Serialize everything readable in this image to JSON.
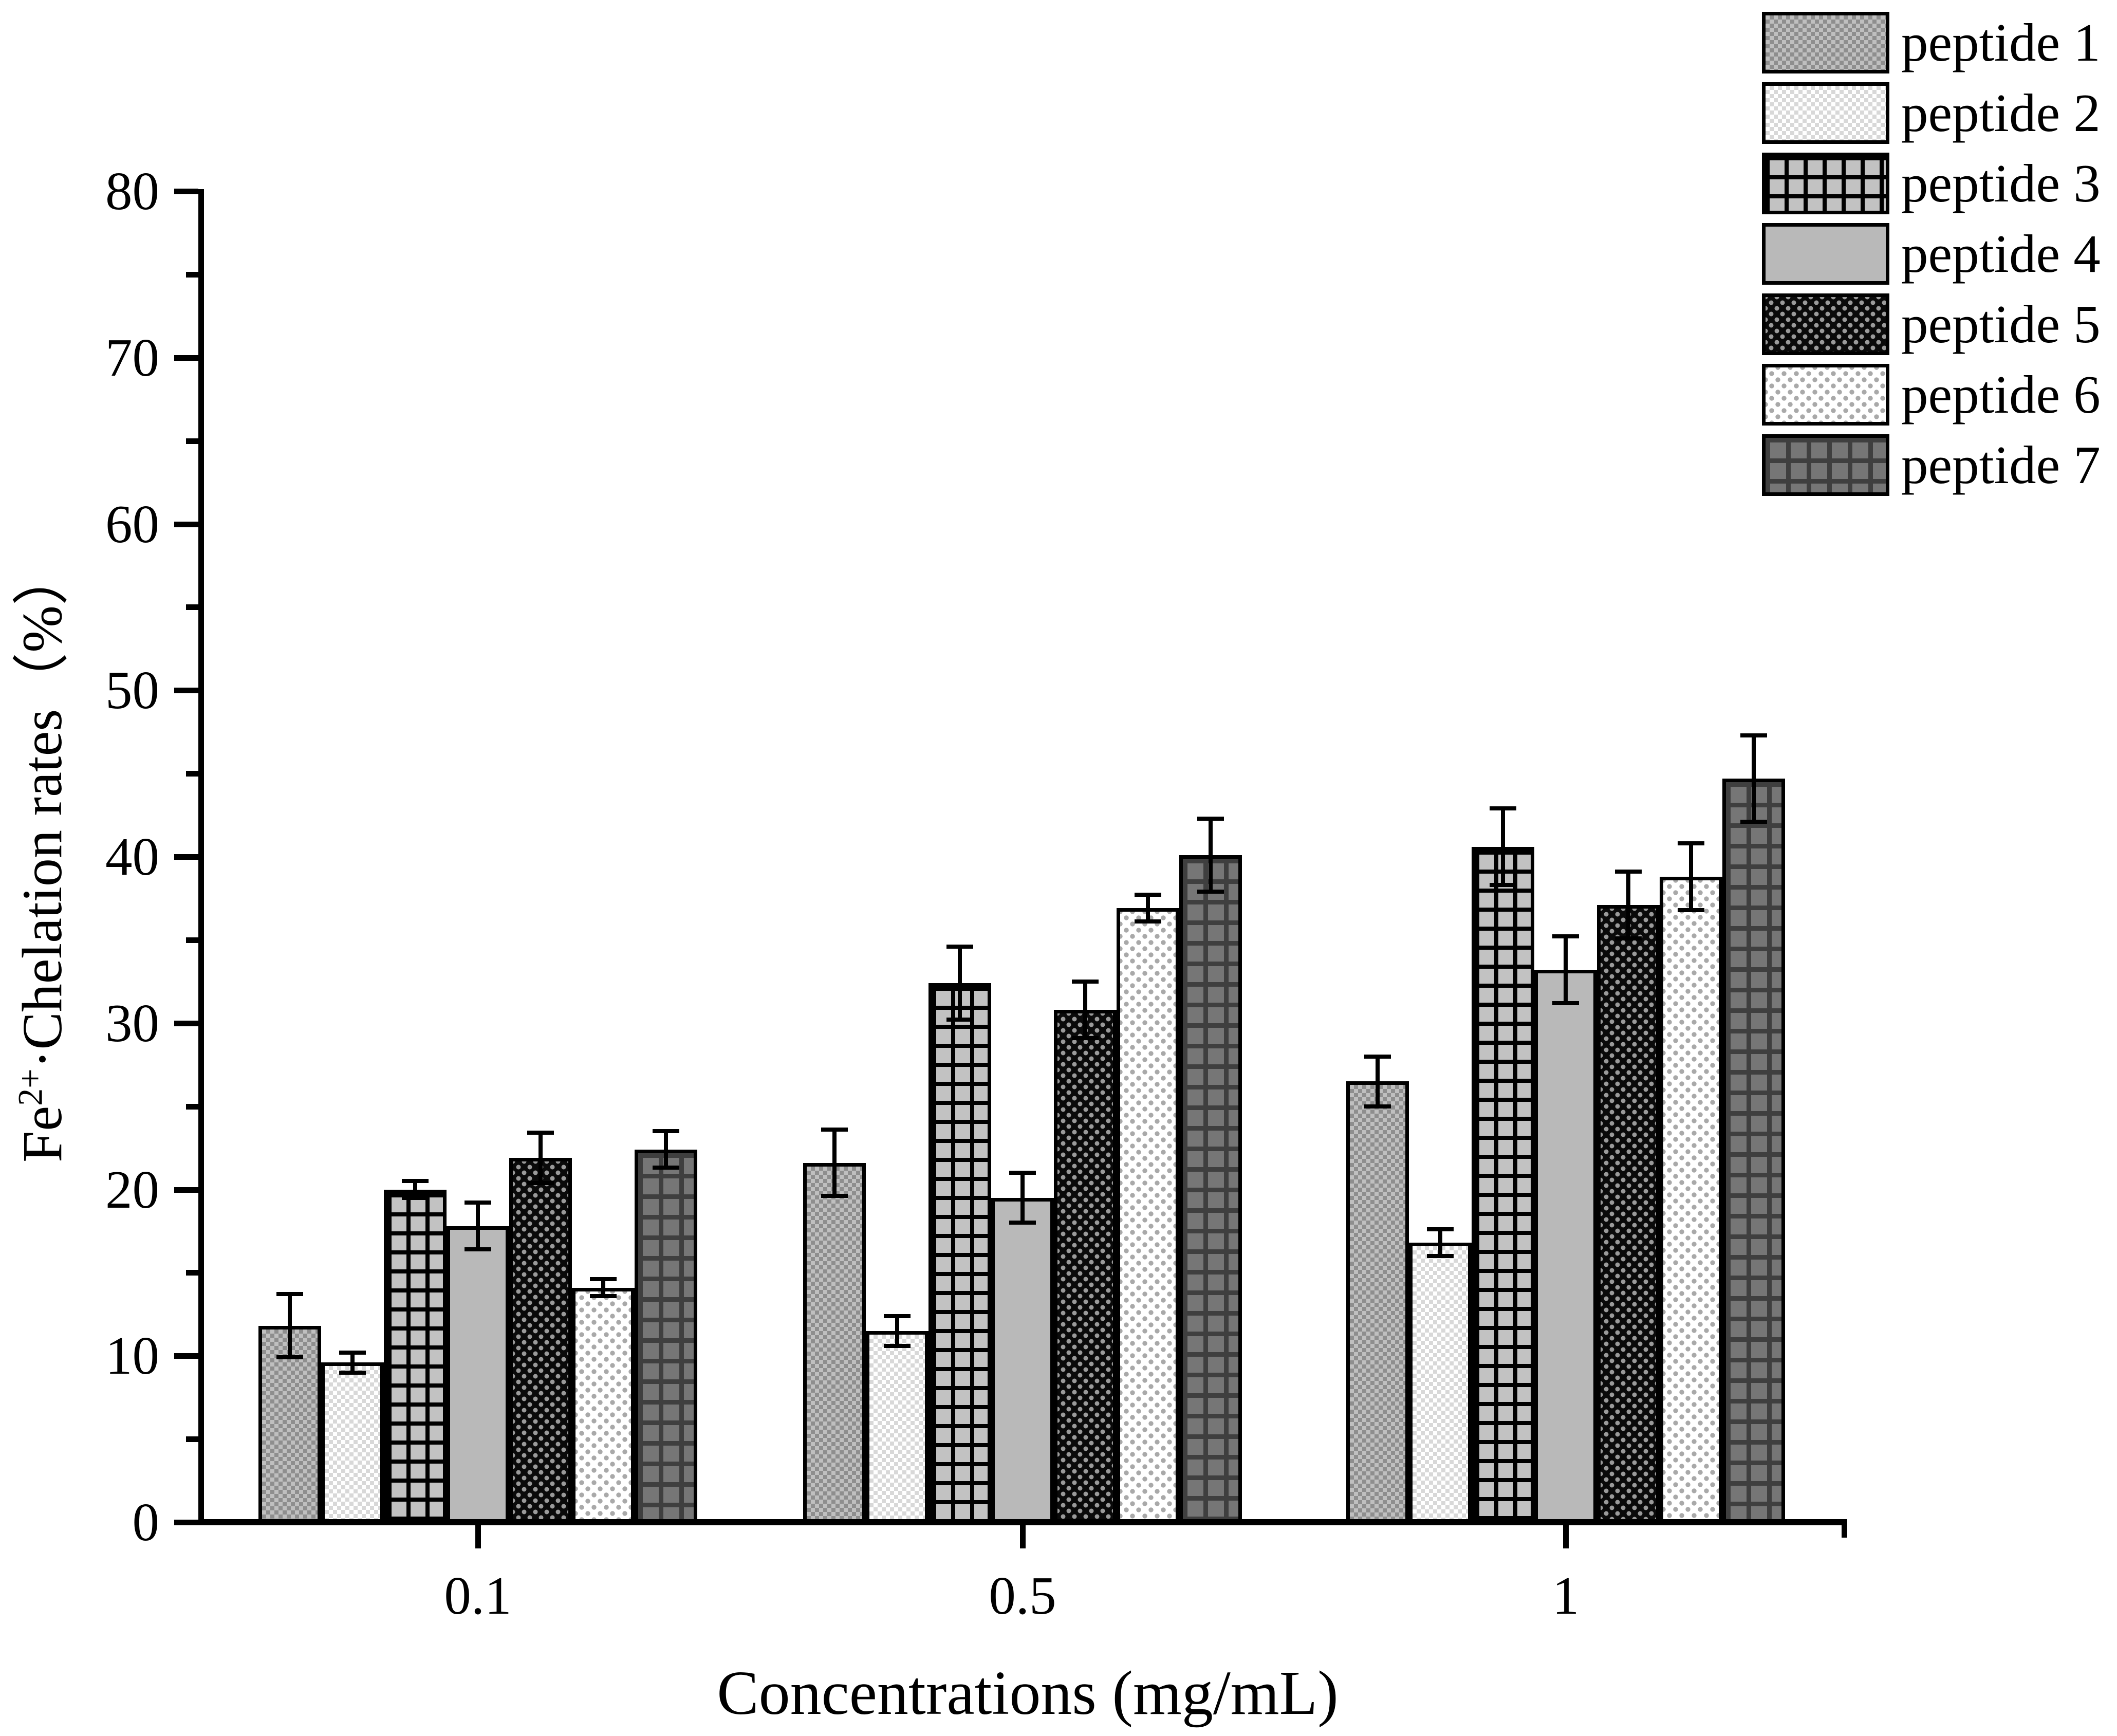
{
  "figure": {
    "background": "#ffffff",
    "axis_color": "#000000",
    "text_color": "#000000"
  },
  "chart_data": {
    "type": "bar",
    "title": "",
    "xlabel": "Concentrations (mg/mL)",
    "ylabel": "Fe2+·Chelation rates (%)",
    "ylabel_parts": {
      "base": "Fe",
      "sup": "2+",
      "rest": "·Chelation rates（%）"
    },
    "categories": [
      "0.1",
      "0.5",
      "1"
    ],
    "y_axis": {
      "min": 0,
      "max": 80,
      "major_step": 10,
      "minor_step": 5,
      "tick_labels": [
        "0",
        "10",
        "20",
        "30",
        "40",
        "50",
        "60",
        "70",
        "80"
      ]
    },
    "grid": false,
    "legend_position": "top-right",
    "error_bars": true,
    "series": [
      {
        "name": "peptide 1",
        "pattern": "fine-checker-mid-gray",
        "colors": [
          "#bfbfbf",
          "#8e8e8e"
        ],
        "values": [
          11.8,
          21.6,
          26.5
        ],
        "errors": [
          1.9,
          2.0,
          1.5
        ]
      },
      {
        "name": "peptide 2",
        "pattern": "fine-checker-light",
        "colors": [
          "#ffffff",
          "#d8d8d8"
        ],
        "values": [
          9.6,
          11.5,
          16.8
        ],
        "errors": [
          0.6,
          0.9,
          0.8
        ]
      },
      {
        "name": "peptide 3",
        "pattern": "black-grid-on-gray",
        "colors": [
          "#c2c2c2",
          "#000000"
        ],
        "values": [
          20.0,
          32.4,
          40.6
        ],
        "errors": [
          0.5,
          2.2,
          2.3
        ]
      },
      {
        "name": "peptide 4",
        "pattern": "solid-light-gray",
        "colors": [
          "#b9b9b9"
        ],
        "values": [
          17.8,
          19.5,
          33.2
        ],
        "errors": [
          1.4,
          1.5,
          2.0
        ]
      },
      {
        "name": "peptide 5",
        "pattern": "dark-checker-dots",
        "colors": [
          "#0a0a0a",
          "#9a9a9a"
        ],
        "values": [
          21.9,
          30.8,
          37.1
        ],
        "errors": [
          1.5,
          1.7,
          2.0
        ]
      },
      {
        "name": "peptide 6",
        "pattern": "white-diamond-dots",
        "colors": [
          "#ffffff",
          "#a9a9a9"
        ],
        "values": [
          14.1,
          36.9,
          38.8
        ],
        "errors": [
          0.5,
          0.8,
          2.0
        ]
      },
      {
        "name": "peptide 7",
        "pattern": "dark-grid-on-dark-gray",
        "colors": [
          "#767676",
          "#3f3f3f"
        ],
        "values": [
          22.4,
          40.1,
          44.7
        ],
        "errors": [
          1.1,
          2.2,
          2.6
        ]
      }
    ]
  }
}
